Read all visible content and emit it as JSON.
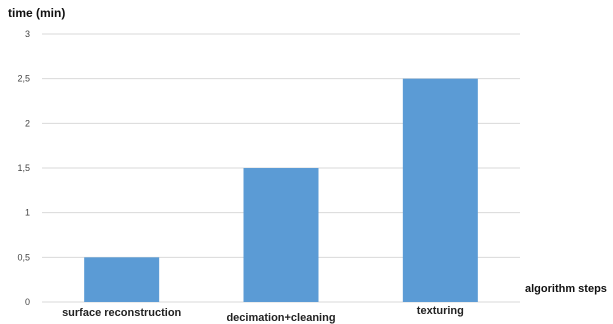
{
  "chart_data": {
    "type": "bar",
    "title": "",
    "ylabel": "time (min)",
    "xlabel": "algorithm steps",
    "categories": [
      "surface reconstruction",
      "decimation+cleaning",
      "texturing"
    ],
    "values": [
      0.5,
      1.5,
      2.5
    ],
    "ylim": [
      0,
      3
    ],
    "yticks": [
      0,
      0.5,
      1,
      1.5,
      2,
      2.5,
      3
    ],
    "ytick_labels": [
      "0",
      "0,5",
      "1",
      "1,5",
      "2",
      "2,5",
      "3"
    ],
    "grid": true,
    "legend": "none",
    "bar_color": "#5B9BD5",
    "grid_color": "#D9D9D9"
  }
}
